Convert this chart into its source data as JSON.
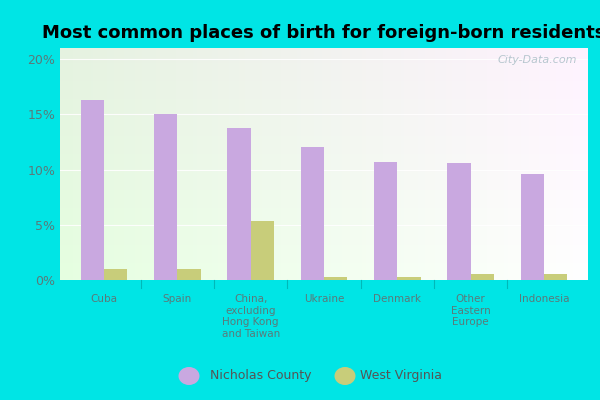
{
  "title": "Most common places of birth for foreign-born residents",
  "categories": [
    "Cuba",
    "Spain",
    "China,\nexcluding\nHong Kong\nand Taiwan",
    "Ukraine",
    "Denmark",
    "Other\nEastern\nEurope",
    "Indonesia"
  ],
  "nicholas_county": [
    16.3,
    15.0,
    13.8,
    12.0,
    10.7,
    10.6,
    9.6
  ],
  "west_virginia": [
    1.0,
    1.0,
    5.3,
    0.3,
    0.3,
    0.5,
    0.5
  ],
  "nicholas_color": "#c9a8e0",
  "west_virginia_color": "#c8cd7a",
  "background_outer": "#00e5e5",
  "ylim": [
    0,
    21
  ],
  "yticks": [
    0,
    5,
    10,
    15,
    20
  ],
  "ytick_labels": [
    "0%",
    "5%",
    "10%",
    "15%",
    "20%"
  ],
  "bar_width": 0.32,
  "title_fontsize": 13,
  "tick_label_color": "#5a7a7a",
  "legend_nicholas": "Nicholas County",
  "legend_wv": "West Virginia",
  "watermark": "City-Data.com"
}
